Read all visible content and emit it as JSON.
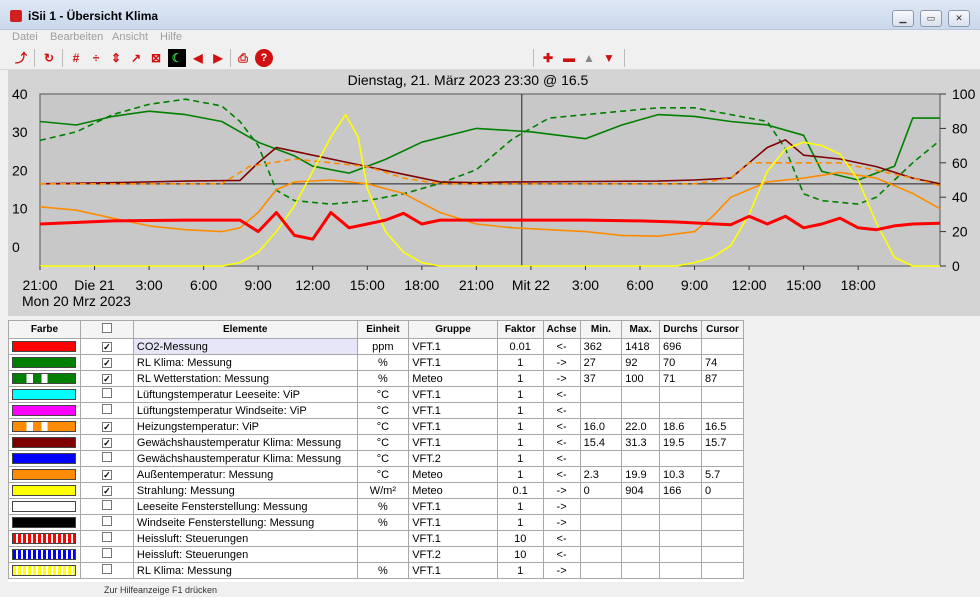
{
  "window": {
    "title": "iSii 1 - Übersicht Klima",
    "controls": [
      "minimize-icon",
      "maximize-icon",
      "close-icon"
    ]
  },
  "menu": [
    "Datei",
    "Bearbeiten",
    "Ansicht",
    "Hilfe"
  ],
  "toolbar": {
    "left": [
      "export-icon",
      "refresh-icon",
      "grid-icon",
      "zoom-vertical-icon",
      "expand-vertical-icon",
      "cursor-icon",
      "box-icon",
      "night-mode-icon",
      "arrow-left-icon",
      "arrow-right-icon",
      "print-icon",
      "help-icon"
    ],
    "right": [
      "add-icon",
      "remove-icon",
      "up-icon",
      "down-icon"
    ]
  },
  "chart_data": {
    "type": "line",
    "title": "Dienstag, 21. März 2023 23:30 @ 16.5",
    "x_labels": [
      "21:00",
      "Die 21",
      "3:00",
      "6:00",
      "9:00",
      "12:00",
      "15:00",
      "18:00",
      "21:00",
      "Mit 22",
      "3:00",
      "6:00",
      "9:00",
      "12:00",
      "15:00",
      "18:00"
    ],
    "x_start_label": "Mon 20 Mrz 2023",
    "x_range_hours": [
      0,
      49.5
    ],
    "cursor_hour": 26.5,
    "y_left": {
      "ticks": [
        40,
        30,
        20,
        10,
        0
      ],
      "range": [
        -5,
        40
      ]
    },
    "y_right": {
      "ticks": [
        100,
        80,
        60,
        40,
        20,
        0
      ],
      "range": [
        0,
        100
      ]
    },
    "grid": false,
    "series": [
      {
        "name": "RL Wetterstation: Messung",
        "color": "#008000",
        "axis": "right",
        "points": [
          [
            0,
            84
          ],
          [
            2,
            82
          ],
          [
            4,
            87
          ],
          [
            6,
            90
          ],
          [
            8,
            88
          ],
          [
            10,
            84
          ],
          [
            12,
            72
          ],
          [
            14,
            64
          ],
          [
            15,
            58
          ],
          [
            17,
            54
          ],
          [
            19,
            62
          ],
          [
            21,
            72
          ],
          [
            24,
            80
          ],
          [
            27,
            78
          ],
          [
            30,
            74
          ],
          [
            32,
            82
          ],
          [
            34,
            88
          ],
          [
            36,
            87
          ],
          [
            38,
            84
          ],
          [
            40,
            82
          ],
          [
            42,
            76
          ],
          [
            43,
            55
          ],
          [
            45,
            50
          ],
          [
            47,
            58
          ],
          [
            48,
            86
          ],
          [
            49.5,
            86
          ]
        ]
      },
      {
        "name": "RL Klima: Messung",
        "color": "#008000",
        "axis": "right",
        "dashed": true,
        "points": [
          [
            0,
            73
          ],
          [
            2,
            78
          ],
          [
            4,
            88
          ],
          [
            6,
            94
          ],
          [
            8,
            97
          ],
          [
            10,
            93
          ],
          [
            11,
            84
          ],
          [
            12,
            70
          ],
          [
            13,
            44
          ],
          [
            14,
            38
          ],
          [
            16,
            36
          ],
          [
            18,
            38
          ],
          [
            20,
            42
          ],
          [
            22,
            48
          ],
          [
            24,
            56
          ],
          [
            26,
            74
          ],
          [
            28,
            86
          ],
          [
            30,
            88
          ],
          [
            32,
            90
          ],
          [
            34,
            92
          ],
          [
            36,
            92
          ],
          [
            38,
            88
          ],
          [
            40,
            84
          ],
          [
            41,
            68
          ],
          [
            42,
            42
          ],
          [
            43,
            38
          ],
          [
            45,
            36
          ],
          [
            46,
            40
          ],
          [
            48,
            60
          ],
          [
            49.5,
            73
          ]
        ]
      },
      {
        "name": "Gewächshaustemperatur Klima: Messung",
        "color": "#800000",
        "axis": "left",
        "points": [
          [
            0,
            16.5
          ],
          [
            4,
            16.8
          ],
          [
            8,
            17.2
          ],
          [
            11,
            17.4
          ],
          [
            12,
            22
          ],
          [
            13,
            26
          ],
          [
            14,
            25
          ],
          [
            16,
            23
          ],
          [
            18,
            21
          ],
          [
            20,
            19
          ],
          [
            22,
            17
          ],
          [
            24,
            16.8
          ],
          [
            26,
            17
          ],
          [
            30,
            17.1
          ],
          [
            34,
            17.2
          ],
          [
            36,
            17.5
          ],
          [
            38,
            18
          ],
          [
            39,
            22
          ],
          [
            40,
            26
          ],
          [
            41,
            28
          ],
          [
            42,
            24
          ],
          [
            44,
            23
          ],
          [
            46,
            21
          ],
          [
            48,
            18
          ],
          [
            49.5,
            16.5
          ]
        ]
      },
      {
        "name": "Heizungstemperatur: ViP",
        "color": "#ff8c00",
        "axis": "left",
        "dashed": true,
        "points": [
          [
            0,
            16.5
          ],
          [
            10,
            16.5
          ],
          [
            11.5,
            21
          ],
          [
            14,
            23
          ],
          [
            16,
            22
          ],
          [
            18,
            21
          ],
          [
            20,
            18
          ],
          [
            22,
            16.5
          ],
          [
            36,
            16.5
          ],
          [
            38,
            18
          ],
          [
            39,
            22
          ],
          [
            42,
            22
          ],
          [
            44,
            22
          ],
          [
            46,
            20
          ],
          [
            48,
            18
          ],
          [
            49.5,
            16
          ]
        ]
      },
      {
        "name": "Außentemperatur: Messung",
        "color": "#ff8c00",
        "axis": "left",
        "points": [
          [
            0,
            10.5
          ],
          [
            2,
            9.6
          ],
          [
            4,
            7.5
          ],
          [
            6,
            5.5
          ],
          [
            8,
            4.5
          ],
          [
            10,
            4
          ],
          [
            11,
            5
          ],
          [
            12,
            9
          ],
          [
            13,
            15
          ],
          [
            14,
            17
          ],
          [
            16,
            17.5
          ],
          [
            18,
            16.5
          ],
          [
            20,
            14
          ],
          [
            22,
            9
          ],
          [
            24,
            6
          ],
          [
            26,
            5
          ],
          [
            28,
            4.5
          ],
          [
            30,
            4
          ],
          [
            32,
            3
          ],
          [
            34,
            2.8
          ],
          [
            36,
            4
          ],
          [
            37,
            8
          ],
          [
            38,
            13
          ],
          [
            40,
            17
          ],
          [
            42,
            18
          ],
          [
            44,
            19.5
          ],
          [
            46,
            18
          ],
          [
            48,
            14
          ],
          [
            49.5,
            10
          ]
        ]
      },
      {
        "name": "Strahlung: Messung",
        "color": "#ffff00",
        "axis": "right",
        "points": [
          [
            0,
            0
          ],
          [
            10,
            0
          ],
          [
            11,
            2
          ],
          [
            12,
            8
          ],
          [
            13,
            20
          ],
          [
            14,
            35
          ],
          [
            15,
            55
          ],
          [
            16,
            75
          ],
          [
            16.8,
            88
          ],
          [
            17.5,
            75
          ],
          [
            18,
            45
          ],
          [
            19,
            20
          ],
          [
            20,
            8
          ],
          [
            21,
            2
          ],
          [
            22,
            0
          ],
          [
            35,
            0
          ],
          [
            36,
            2
          ],
          [
            37,
            5
          ],
          [
            38,
            12
          ],
          [
            39,
            30
          ],
          [
            40,
            55
          ],
          [
            41,
            68
          ],
          [
            42,
            72
          ],
          [
            43,
            70
          ],
          [
            44,
            65
          ],
          [
            45,
            50
          ],
          [
            46,
            25
          ],
          [
            47,
            5
          ],
          [
            48,
            0
          ],
          [
            49.5,
            0
          ]
        ]
      },
      {
        "name": "CO2-Messung",
        "color": "#ff0000",
        "axis": "left",
        "width": 3,
        "points": [
          [
            0,
            6
          ],
          [
            4,
            6.8
          ],
          [
            8,
            7
          ],
          [
            11,
            7
          ],
          [
            12,
            4
          ],
          [
            13,
            9
          ],
          [
            14,
            3
          ],
          [
            15,
            2
          ],
          [
            16,
            9
          ],
          [
            17,
            5
          ],
          [
            18,
            6
          ],
          [
            19,
            7
          ],
          [
            20,
            8.8
          ],
          [
            21,
            6
          ],
          [
            22,
            7
          ],
          [
            26,
            7
          ],
          [
            30,
            7
          ],
          [
            33,
            6.8
          ],
          [
            35,
            6.5
          ],
          [
            38,
            5.8
          ],
          [
            39,
            8
          ],
          [
            40,
            6
          ],
          [
            41,
            8
          ],
          [
            42,
            5
          ],
          [
            43,
            6
          ],
          [
            44,
            7.5
          ],
          [
            45,
            5
          ],
          [
            46,
            4.5
          ],
          [
            47,
            5.5
          ],
          [
            48,
            6
          ],
          [
            49.5,
            6.2
          ]
        ]
      }
    ]
  },
  "table": {
    "headers": [
      "Farbe",
      "",
      "Elemente",
      "Einheit",
      "Gruppe",
      "Faktor",
      "Achse",
      "Min.",
      "Max.",
      "Durchs",
      "Cursor"
    ],
    "rows": [
      {
        "color": "#ff0000",
        "pattern": "solid",
        "checked": true,
        "name": "CO2-Messung",
        "unit": "ppm",
        "group": "VFT.1",
        "factor": "0.01",
        "axis": "<-",
        "min": "362",
        "max": "1418",
        "avg": "696",
        "cursor": ""
      },
      {
        "color": "#008000",
        "pattern": "solid",
        "checked": true,
        "name": "RL Klima: Messung",
        "unit": "%",
        "group": "VFT.1",
        "factor": "1",
        "axis": "->",
        "min": "27",
        "max": "92",
        "avg": "70",
        "cursor": "74"
      },
      {
        "color": "#008000",
        "pattern": "dashed",
        "checked": true,
        "name": "RL Wetterstation: Messung",
        "unit": "%",
        "group": "Meteo",
        "factor": "1",
        "axis": "->",
        "min": "37",
        "max": "100",
        "avg": "71",
        "cursor": "87"
      },
      {
        "color": "#00ffff",
        "pattern": "solid",
        "checked": false,
        "name": "Lüftungstemperatur Leeseite: ViP",
        "unit": "°C",
        "group": "VFT.1",
        "factor": "1",
        "axis": "<-",
        "min": "",
        "max": "",
        "avg": "",
        "cursor": ""
      },
      {
        "color": "#ff00ff",
        "pattern": "solid",
        "checked": false,
        "name": "Lüftungstemperatur Windseite: ViP",
        "unit": "°C",
        "group": "VFT.1",
        "factor": "1",
        "axis": "<-",
        "min": "",
        "max": "",
        "avg": "",
        "cursor": ""
      },
      {
        "color": "#ff8c00",
        "pattern": "dashed",
        "checked": true,
        "name": "Heizungstemperatur: ViP",
        "unit": "°C",
        "group": "VFT.1",
        "factor": "1",
        "axis": "<-",
        "min": "16.0",
        "max": "22.0",
        "avg": "18.6",
        "cursor": "16.5"
      },
      {
        "color": "#800000",
        "pattern": "solid",
        "checked": true,
        "name": "Gewächshaustemperatur Klima: Messung",
        "unit": "°C",
        "group": "VFT.1",
        "factor": "1",
        "axis": "<-",
        "min": "15.4",
        "max": "31.3",
        "avg": "19.5",
        "cursor": "15.7"
      },
      {
        "color": "#0000ff",
        "pattern": "solid",
        "checked": false,
        "name": "Gewächshaustemperatur Klima: Messung",
        "unit": "°C",
        "group": "VFT.2",
        "factor": "1",
        "axis": "<-",
        "min": "",
        "max": "",
        "avg": "",
        "cursor": ""
      },
      {
        "color": "#ff8c00",
        "pattern": "solid",
        "checked": true,
        "name": "Außentemperatur: Messung",
        "unit": "°C",
        "group": "Meteo",
        "factor": "1",
        "axis": "<-",
        "min": "2.3",
        "max": "19.9",
        "avg": "10.3",
        "cursor": "5.7"
      },
      {
        "color": "#ffff00",
        "pattern": "solid",
        "checked": true,
        "name": "Strahlung: Messung",
        "unit": "W/m²",
        "group": "Meteo",
        "factor": "0.1",
        "axis": "->",
        "min": "0",
        "max": "904",
        "avg": "166",
        "cursor": "0"
      },
      {
        "color": "#ffffff",
        "pattern": "solid",
        "checked": false,
        "name": "Leeseite Fensterstellung: Messung",
        "unit": "%",
        "group": "VFT.1",
        "factor": "1",
        "axis": "->",
        "min": "",
        "max": "",
        "avg": "",
        "cursor": ""
      },
      {
        "color": "#000000",
        "pattern": "solid",
        "checked": false,
        "name": "Windseite Fensterstellung: Messung",
        "unit": "%",
        "group": "VFT.1",
        "factor": "1",
        "axis": "->",
        "min": "",
        "max": "",
        "avg": "",
        "cursor": ""
      },
      {
        "color": "#ff0000",
        "pattern": "striped",
        "checked": false,
        "name": "Heissluft: Steuerungen",
        "unit": "",
        "group": "VFT.1",
        "factor": "10",
        "axis": "<-",
        "min": "",
        "max": "",
        "avg": "",
        "cursor": ""
      },
      {
        "color": "#0000ff",
        "pattern": "striped",
        "checked": false,
        "name": "Heissluft: Steuerungen",
        "unit": "",
        "group": "VFT.2",
        "factor": "10",
        "axis": "<-",
        "min": "",
        "max": "",
        "avg": "",
        "cursor": ""
      },
      {
        "color": "#ffff00",
        "pattern": "striped",
        "checked": false,
        "name": "RL Klima: Messung",
        "unit": "%",
        "group": "VFT.1",
        "factor": "1",
        "axis": "->",
        "min": "",
        "max": "",
        "avg": "",
        "cursor": ""
      }
    ]
  },
  "status": "Zur Hilfeanzeige F1 drücken"
}
